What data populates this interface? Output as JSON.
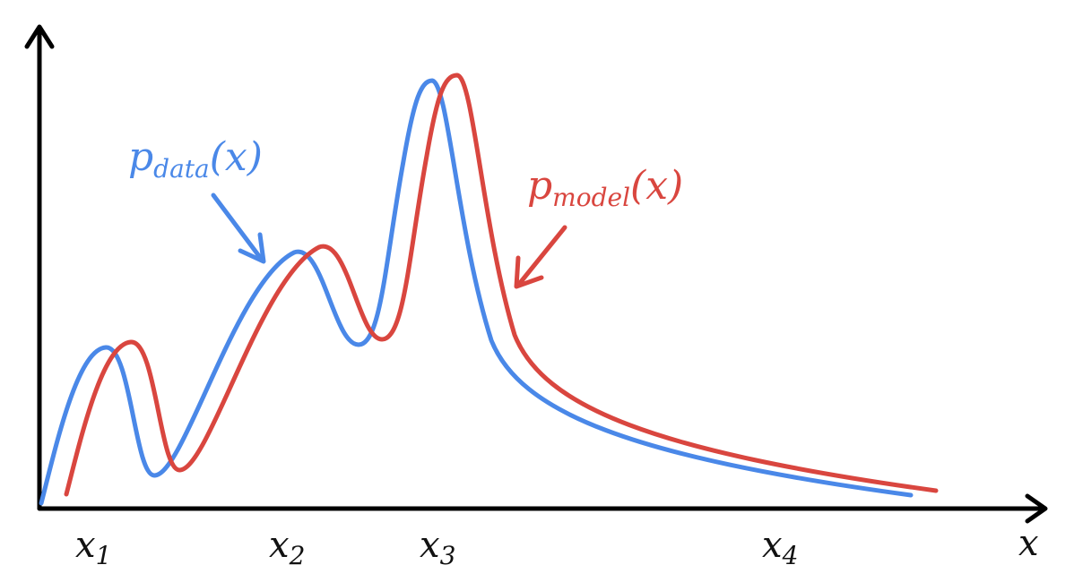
{
  "axes": {
    "x_label": "x",
    "ticks": [
      {
        "base": "x",
        "sub": "1"
      },
      {
        "base": "x",
        "sub": "2"
      },
      {
        "base": "x",
        "sub": "3"
      },
      {
        "base": "x",
        "sub": "4"
      }
    ]
  },
  "series": [
    {
      "key": "data",
      "base": "p",
      "sub": "data",
      "arg": "(x)",
      "color": "#4a88e8"
    },
    {
      "key": "model",
      "base": "p",
      "sub": "model",
      "arg": "(x)",
      "color": "#d9463f"
    }
  ]
}
